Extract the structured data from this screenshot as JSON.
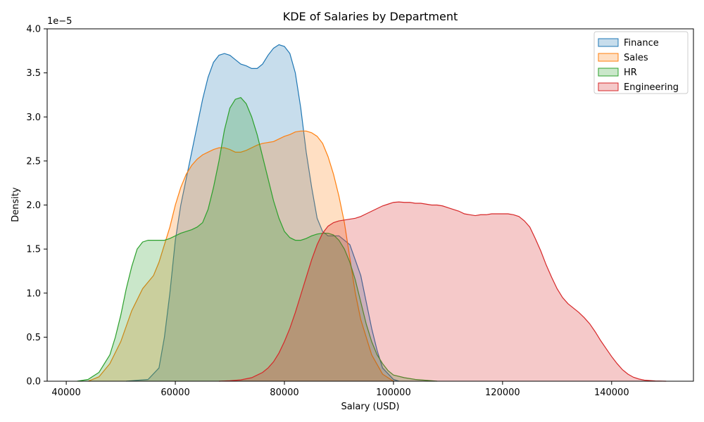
{
  "chart_data": {
    "type": "area",
    "title": "KDE of Salaries by Department",
    "xlabel": "Salary (USD)",
    "ylabel": "Density",
    "y_offset_label": "1e−5",
    "xlim": [
      36500,
      155000
    ],
    "ylim": [
      0,
      4.0
    ],
    "x_ticks": [
      40000,
      60000,
      80000,
      100000,
      120000,
      140000
    ],
    "x_tick_labels": [
      "40000",
      "60000",
      "80000",
      "100000",
      "120000",
      "140000"
    ],
    "y_ticks": [
      0,
      0.5,
      1.0,
      1.5,
      2.0,
      2.5,
      3.0,
      3.5,
      4.0
    ],
    "y_tick_labels": [
      "0.0",
      "0.5",
      "1.0",
      "1.5",
      "2.0",
      "2.5",
      "3.0",
      "3.5",
      "4.0"
    ],
    "grid": false,
    "legend_position": "top-right",
    "fill_opacity": 0.25,
    "series": [
      {
        "name": "Finance",
        "color": "#1f77b4",
        "x": [
          51000,
          55000,
          57000,
          58000,
          59000,
          60000,
          61000,
          62000,
          63000,
          64000,
          65000,
          66000,
          67000,
          68000,
          69000,
          70000,
          71000,
          72000,
          73000,
          74000,
          75000,
          76000,
          77000,
          78000,
          79000,
          80000,
          81000,
          82000,
          83000,
          84000,
          85000,
          86000,
          87000,
          88000,
          89000,
          90000,
          92000,
          94000,
          95000,
          96000,
          97000,
          98000,
          100000,
          101000
        ],
        "y": [
          0,
          0.02,
          0.15,
          0.5,
          1.0,
          1.6,
          2.0,
          2.3,
          2.6,
          2.9,
          3.2,
          3.45,
          3.62,
          3.7,
          3.72,
          3.7,
          3.65,
          3.6,
          3.58,
          3.55,
          3.55,
          3.6,
          3.7,
          3.78,
          3.82,
          3.8,
          3.72,
          3.5,
          3.1,
          2.6,
          2.2,
          1.85,
          1.7,
          1.65,
          1.65,
          1.65,
          1.55,
          1.2,
          0.9,
          0.6,
          0.35,
          0.15,
          0.02,
          0
        ]
      },
      {
        "name": "Sales",
        "color": "#ff7f0e",
        "x": [
          44000,
          46000,
          48000,
          50000,
          52000,
          54000,
          56000,
          57000,
          58000,
          59000,
          60000,
          61000,
          62000,
          63000,
          64000,
          65000,
          66000,
          67000,
          68000,
          69000,
          70000,
          71000,
          72000,
          73000,
          74000,
          75000,
          76000,
          77000,
          78000,
          79000,
          80000,
          81000,
          82000,
          83000,
          84000,
          85000,
          86000,
          87000,
          88000,
          89000,
          90000,
          91000,
          92000,
          93000,
          94000,
          96000,
          98000,
          100000
        ],
        "y": [
          0,
          0.05,
          0.2,
          0.45,
          0.8,
          1.05,
          1.2,
          1.35,
          1.55,
          1.75,
          2.0,
          2.2,
          2.35,
          2.45,
          2.52,
          2.57,
          2.6,
          2.63,
          2.65,
          2.65,
          2.63,
          2.6,
          2.6,
          2.62,
          2.65,
          2.68,
          2.7,
          2.71,
          2.72,
          2.75,
          2.78,
          2.8,
          2.83,
          2.84,
          2.84,
          2.82,
          2.78,
          2.7,
          2.55,
          2.35,
          2.1,
          1.8,
          1.4,
          1.0,
          0.7,
          0.3,
          0.08,
          0
        ]
      },
      {
        "name": "HR",
        "color": "#2ca02c",
        "x": [
          42000,
          44000,
          46000,
          48000,
          49000,
          50000,
          51000,
          52000,
          53000,
          54000,
          55000,
          56000,
          57000,
          58000,
          59000,
          60000,
          61000,
          62000,
          63000,
          64000,
          65000,
          66000,
          67000,
          68000,
          69000,
          70000,
          71000,
          72000,
          73000,
          74000,
          75000,
          76000,
          77000,
          78000,
          79000,
          80000,
          81000,
          82000,
          83000,
          84000,
          85000,
          86000,
          87000,
          88000,
          89000,
          90000,
          91000,
          92000,
          93000,
          94000,
          95000,
          96000,
          97000,
          98000,
          99000,
          100000,
          102000,
          104000,
          106000,
          108000
        ],
        "y": [
          0,
          0.02,
          0.1,
          0.3,
          0.5,
          0.75,
          1.05,
          1.3,
          1.5,
          1.58,
          1.6,
          1.6,
          1.6,
          1.6,
          1.62,
          1.65,
          1.68,
          1.7,
          1.72,
          1.75,
          1.8,
          1.95,
          2.2,
          2.5,
          2.85,
          3.1,
          3.2,
          3.22,
          3.15,
          3.0,
          2.8,
          2.55,
          2.3,
          2.05,
          1.85,
          1.7,
          1.63,
          1.6,
          1.6,
          1.62,
          1.65,
          1.67,
          1.68,
          1.68,
          1.66,
          1.6,
          1.5,
          1.35,
          1.15,
          0.9,
          0.65,
          0.45,
          0.3,
          0.2,
          0.12,
          0.07,
          0.04,
          0.02,
          0.01,
          0
        ],
        "y_scale": 1
      },
      {
        "name": "Engineering",
        "color": "#d62728",
        "x": [
          68000,
          70000,
          72000,
          74000,
          76000,
          77000,
          78000,
          79000,
          80000,
          81000,
          82000,
          83000,
          84000,
          85000,
          86000,
          87000,
          88000,
          89000,
          90000,
          91000,
          92000,
          93000,
          94000,
          95000,
          96000,
          97000,
          98000,
          99000,
          100000,
          101000,
          102000,
          103000,
          104000,
          105000,
          106000,
          107000,
          108000,
          109000,
          110000,
          111000,
          112000,
          113000,
          114000,
          115000,
          116000,
          117000,
          118000,
          119000,
          120000,
          121000,
          122000,
          123000,
          124000,
          125000,
          126000,
          127000,
          128000,
          129000,
          130000,
          131000,
          132000,
          133000,
          134000,
          135000,
          136000,
          137000,
          138000,
          139000,
          140000,
          141000,
          142000,
          143000,
          144000,
          145000,
          146000,
          148000,
          150000
        ],
        "y": [
          0,
          0.005,
          0.015,
          0.04,
          0.1,
          0.15,
          0.22,
          0.32,
          0.45,
          0.6,
          0.78,
          0.98,
          1.18,
          1.38,
          1.55,
          1.68,
          1.76,
          1.8,
          1.82,
          1.83,
          1.84,
          1.85,
          1.87,
          1.9,
          1.93,
          1.96,
          1.99,
          2.01,
          2.03,
          2.035,
          2.03,
          2.03,
          2.02,
          2.02,
          2.01,
          2.0,
          2.0,
          1.99,
          1.97,
          1.95,
          1.93,
          1.9,
          1.89,
          1.88,
          1.89,
          1.89,
          1.9,
          1.9,
          1.9,
          1.9,
          1.89,
          1.87,
          1.82,
          1.75,
          1.62,
          1.48,
          1.32,
          1.18,
          1.05,
          0.95,
          0.88,
          0.83,
          0.78,
          0.72,
          0.65,
          0.56,
          0.46,
          0.37,
          0.28,
          0.2,
          0.13,
          0.08,
          0.045,
          0.025,
          0.012,
          0.003,
          0
        ]
      }
    ]
  }
}
